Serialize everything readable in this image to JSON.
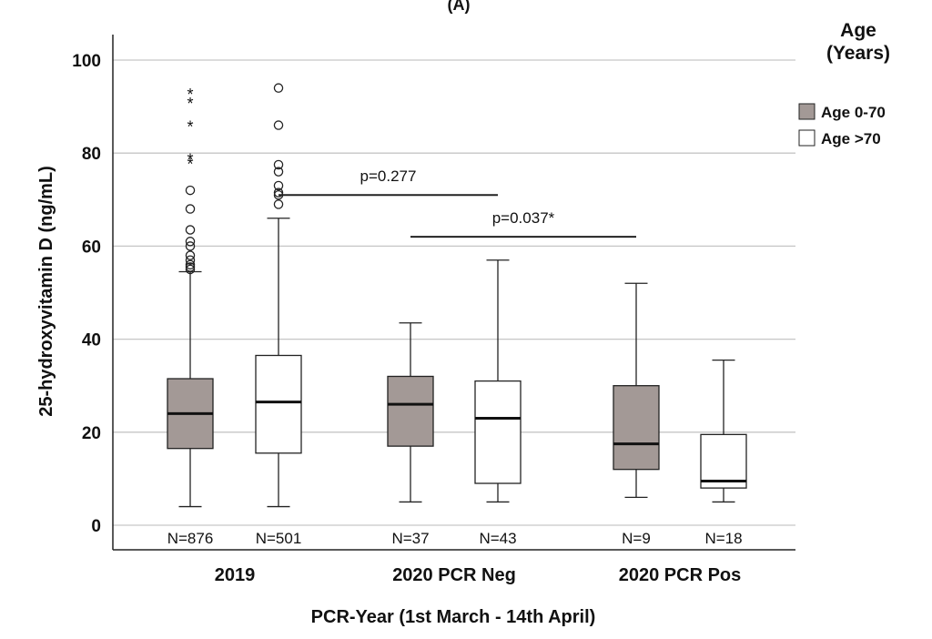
{
  "panel_label": "(A)",
  "chart_data": {
    "type": "boxplot",
    "xlabel": "PCR-Year (1st March - 14th April)",
    "ylabel": "25-hydroxyvitamin D (ng/mL)",
    "ylim": [
      0,
      100
    ],
    "yticks": [
      "0",
      "20",
      "40",
      "60",
      "80",
      "100"
    ],
    "grid": "horizontal",
    "legend": {
      "title_line1": "Age",
      "title_line2": "(Years)",
      "position": "top-right",
      "items": [
        {
          "label": "Age 0-70",
          "color": "#a39996"
        },
        {
          "label": "Age >70",
          "color": "#ffffff"
        }
      ]
    },
    "categories": [
      "2019",
      "2020 PCR Neg",
      "2020 PCR Pos"
    ],
    "boxes": [
      {
        "category": "2019",
        "group": "Age 0-70",
        "n_label": "N=876",
        "whisker_low": 4,
        "q1": 16.5,
        "median": 24,
        "q3": 31.5,
        "whisker_high": 54.5,
        "outliers_circle": [
          55,
          55.5,
          56,
          57,
          58,
          60,
          61,
          63.5,
          68,
          72
        ],
        "outliers_star": [
          78,
          79,
          86,
          91,
          93
        ]
      },
      {
        "category": "2019",
        "group": "Age >70",
        "n_label": "N=501",
        "whisker_low": 4,
        "q1": 15.5,
        "median": 26.5,
        "q3": 36.5,
        "whisker_high": 66,
        "outliers_circle": [
          69,
          71,
          71.5,
          73,
          76,
          77.5,
          86,
          94
        ],
        "outliers_star": []
      },
      {
        "category": "2020 PCR Neg",
        "group": "Age 0-70",
        "n_label": "N=37",
        "whisker_low": 5,
        "q1": 17,
        "median": 26,
        "q3": 32,
        "whisker_high": 43.5,
        "outliers_circle": [],
        "outliers_star": []
      },
      {
        "category": "2020 PCR Neg",
        "group": "Age >70",
        "n_label": "N=43",
        "whisker_low": 5,
        "q1": 9,
        "median": 23,
        "q3": 31,
        "whisker_high": 57,
        "outliers_circle": [],
        "outliers_star": []
      },
      {
        "category": "2020 PCR Pos",
        "group": "Age 0-70",
        "n_label": "N=9",
        "whisker_low": 6,
        "q1": 12,
        "median": 17.5,
        "q3": 30,
        "whisker_high": 52,
        "outliers_circle": [],
        "outliers_star": []
      },
      {
        "category": "2020 PCR Pos",
        "group": "Age >70",
        "n_label": "N=18",
        "whisker_low": 5,
        "q1": 8,
        "median": 9.5,
        "q3": 19.5,
        "whisker_high": 35.5,
        "outliers_circle": [],
        "outliers_star": []
      }
    ],
    "annotations": [
      {
        "text": "p=0.277",
        "from_box": 2,
        "to_box": 4,
        "y": 71
      },
      {
        "text": "p=0.037*",
        "from_box": 3,
        "to_box": 5,
        "y": 62
      }
    ]
  }
}
